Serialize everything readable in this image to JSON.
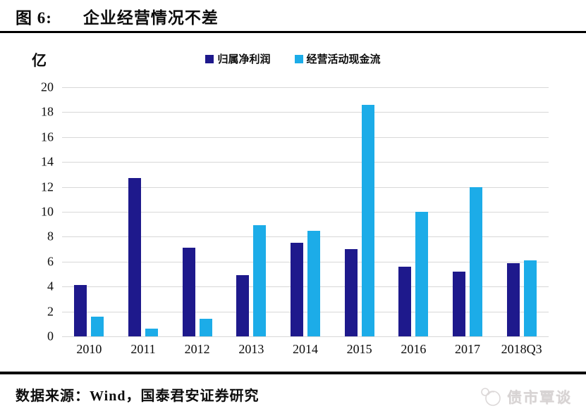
{
  "header": {
    "figure_label": "图 6:",
    "title": "企业经营情况不差"
  },
  "chart_data": {
    "type": "bar",
    "unit_label": "亿",
    "categories": [
      "2010",
      "2011",
      "2012",
      "2013",
      "2014",
      "2015",
      "2016",
      "2017",
      "2018Q3"
    ],
    "series": [
      {
        "name": "归属净利润",
        "key": "net-profit",
        "color": "#1e198c",
        "values": [
          4.1,
          12.7,
          7.1,
          4.9,
          7.5,
          7.0,
          5.6,
          5.2,
          5.9
        ]
      },
      {
        "name": "经营活动现金流",
        "key": "operating-cash-flow",
        "color": "#1cace8",
        "values": [
          1.6,
          0.6,
          1.4,
          8.9,
          8.5,
          18.6,
          10.0,
          12.0,
          6.1
        ]
      }
    ],
    "ylim": [
      0,
      20
    ],
    "yticks": [
      0,
      2,
      4,
      6,
      8,
      10,
      12,
      14,
      16,
      18,
      20
    ],
    "grid": "horizontal",
    "gridline_color": "#d8d8d8",
    "legend_position": "top-center"
  },
  "footer": {
    "source": "数据来源：Wind，国泰君安证券研究",
    "watermark": "债市覃谈"
  }
}
